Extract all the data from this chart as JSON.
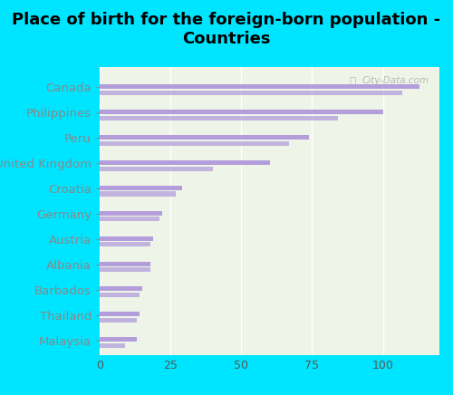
{
  "title": "Place of birth for the foreign-born population -\nCountries",
  "categories": [
    "Canada",
    "Philippines",
    "Peru",
    "United Kingdom",
    "Croatia",
    "Germany",
    "Austria",
    "Albania",
    "Barbados",
    "Thailand",
    "Malaysia"
  ],
  "values1": [
    113,
    100,
    74,
    60,
    29,
    22,
    19,
    18,
    15,
    14,
    13
  ],
  "values2": [
    107,
    84,
    67,
    40,
    27,
    21,
    18,
    18,
    14,
    13,
    9
  ],
  "bar_color": "#b39ddb",
  "background_plot": "#eef5e8",
  "background_fig": "#00e5ff",
  "xlim": [
    0,
    120
  ],
  "xticks": [
    0,
    25,
    50,
    75,
    100
  ],
  "title_fontsize": 13,
  "label_fontsize": 9.5,
  "tick_fontsize": 9,
  "label_color": "#00bcd4",
  "tick_color": "#555555",
  "watermark": "City-Data.com"
}
